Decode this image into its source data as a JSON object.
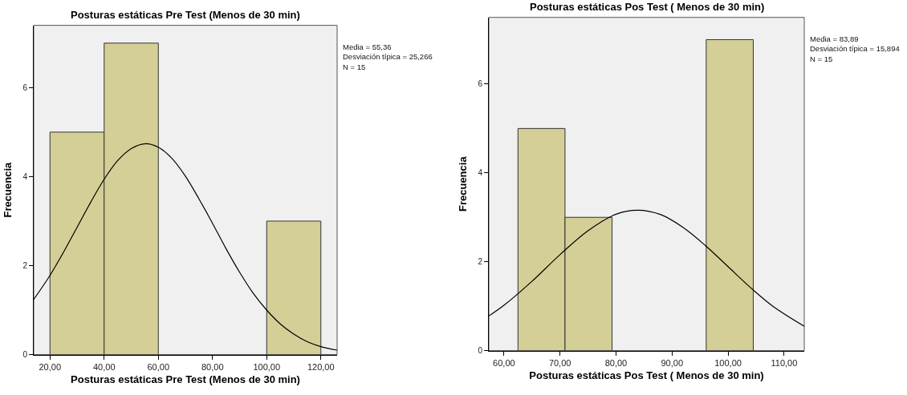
{
  "chart_data": [
    {
      "type": "histogram",
      "title": "Posturas estáticas Pre Test (Menos de 30 min)",
      "xlabel": "Posturas estáticas Pre Test (Menos de 30 min)",
      "ylabel": "Frecuencia",
      "annotations": [
        "Media = 55,36",
        "Desviación típica = 25,266",
        "N = 15"
      ],
      "series": [
        {
          "type": "histogram",
          "color": "#d3cf96",
          "bins": [
            20,
            40,
            60,
            80,
            100,
            120
          ],
          "values": [
            5,
            7,
            0,
            0,
            3
          ]
        },
        {
          "type": "line",
          "color": "#000000",
          "x": [
            14,
            20,
            25,
            30,
            35,
            40,
            45,
            50,
            55.36,
            60,
            65,
            70,
            75,
            80,
            85,
            90,
            95,
            100,
            105,
            110,
            115,
            120,
            126
          ],
          "values": [
            1.24,
            1.78,
            2.3,
            2.86,
            3.42,
            3.94,
            4.36,
            4.63,
            4.74,
            4.66,
            4.41,
            4.01,
            3.5,
            2.95,
            2.38,
            1.85,
            1.38,
            1.0,
            0.69,
            0.46,
            0.29,
            0.18,
            0.1
          ]
        }
      ],
      "xlim": [
        14,
        126
      ],
      "xticks": [
        {
          "value": 20,
          "label": "20,00"
        },
        {
          "value": 40,
          "label": "40,00"
        },
        {
          "value": 60,
          "label": "60,00"
        },
        {
          "value": 80,
          "label": "80,00"
        },
        {
          "value": 100,
          "label": "100,00"
        },
        {
          "value": 120,
          "label": "120,00"
        }
      ],
      "ylim": [
        0,
        7.4
      ],
      "yticks": [
        0,
        2,
        4,
        6
      ],
      "grid": false,
      "legend": false
    },
    {
      "type": "histogram",
      "title": "Posturas estáticas Pos Test ( Menos de 30 min)",
      "xlabel": "Posturas estáticas Pos Test ( Menos de 30 min)",
      "ylabel": "Frecuencia",
      "annotations": [
        "Media = 83,89",
        "Desviación típica = 15,894",
        "N = 15"
      ],
      "series": [
        {
          "type": "histogram",
          "color": "#d3cf96",
          "bins": [
            62.5,
            70.9,
            79.3,
            87.7,
            96.1,
            104.5
          ],
          "values": [
            5,
            3,
            0,
            0,
            7
          ]
        },
        {
          "type": "line",
          "color": "#000000",
          "x": [
            57.3,
            60,
            65,
            70,
            75,
            80,
            83.89,
            88,
            92,
            96,
            100,
            104,
            108,
            113.6
          ],
          "values": [
            0.78,
            1.02,
            1.56,
            2.16,
            2.7,
            3.07,
            3.16,
            3.06,
            2.77,
            2.36,
            1.89,
            1.42,
            1.0,
            0.55
          ]
        }
      ],
      "xlim": [
        57.3,
        113.6
      ],
      "xticks": [
        {
          "value": 60,
          "label": "60,00"
        },
        {
          "value": 70,
          "label": "70,00"
        },
        {
          "value": 80,
          "label": "80,00"
        },
        {
          "value": 90,
          "label": "90,00"
        },
        {
          "value": 100,
          "label": "100,00"
        },
        {
          "value": 110,
          "label": "110,00"
        }
      ],
      "ylim": [
        0,
        7.5
      ],
      "yticks": [
        0,
        2,
        4,
        6
      ],
      "grid": false,
      "legend": false
    }
  ]
}
